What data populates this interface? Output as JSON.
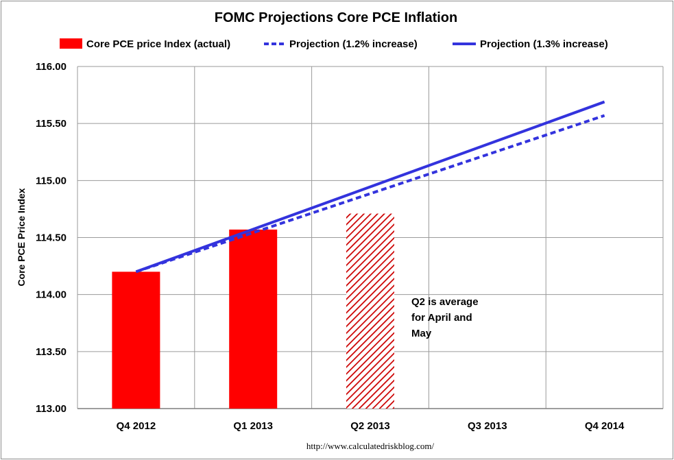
{
  "chart_data": {
    "type": "bar",
    "title": "FOMC Projections Core PCE Inflation",
    "ylabel": "Core PCE Price Index",
    "xlabel": "",
    "ylim": [
      113.0,
      116.0
    ],
    "y_ticks": [
      "113.00",
      "113.50",
      "114.00",
      "114.50",
      "115.00",
      "115.50",
      "116.00"
    ],
    "y_tick_values": [
      113.0,
      113.5,
      114.0,
      114.5,
      115.0,
      115.5,
      116.0
    ],
    "categories": [
      "Q4 2012",
      "Q1 2013",
      "Q2 2013",
      "Q3 2013",
      "Q4 2014"
    ],
    "grid": true,
    "legend_position": "top",
    "series": [
      {
        "name": "Core PCE price Index (actual)",
        "kind": "bar",
        "color": "#ff0000",
        "values": [
          114.2,
          114.57,
          114.71,
          null,
          null
        ],
        "hatched": [
          false,
          false,
          true,
          false,
          false
        ]
      },
      {
        "name": "Projection (1.2% increase)",
        "kind": "line",
        "style": "dashed",
        "color": "#3333dd",
        "start": 114.2,
        "end": 115.57
      },
      {
        "name": "Projection (1.3% increase)",
        "kind": "line",
        "style": "solid",
        "color": "#3333dd",
        "start": 114.2,
        "end": 115.69
      }
    ],
    "annotation": [
      "Q2 is average",
      "for April and",
      "May"
    ],
    "source": "http://www.calculatedriskblog.com/"
  }
}
